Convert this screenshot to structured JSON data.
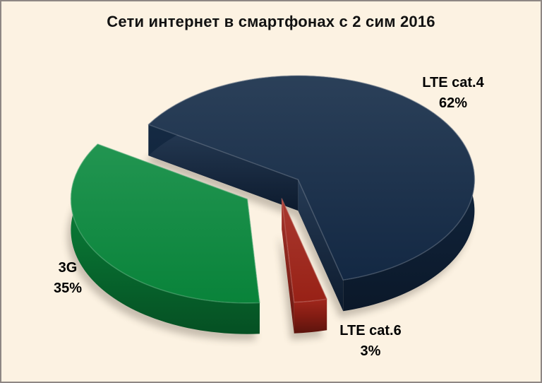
{
  "window": {
    "background_color": "#FCF2E2",
    "border_color": "#8E8784"
  },
  "chart_data": {
    "type": "pie",
    "style": "3d-exploded-pie",
    "title": "Сети интернет в смартфонах с 2 сим 2016",
    "start_angle_deg": -58,
    "legend": "none",
    "data_label_format": "category name + percent",
    "series": [
      {
        "label": "LTE cat.4",
        "value": 62,
        "percent_label": "62%",
        "color": "#142B47"
      },
      {
        "label": "LTE cat.6",
        "value": 3,
        "percent_label": "3%",
        "color": "#A02318"
      },
      {
        "label": "3G",
        "value": 35,
        "percent_label": "35%",
        "color": "#0A8A3E"
      }
    ]
  }
}
